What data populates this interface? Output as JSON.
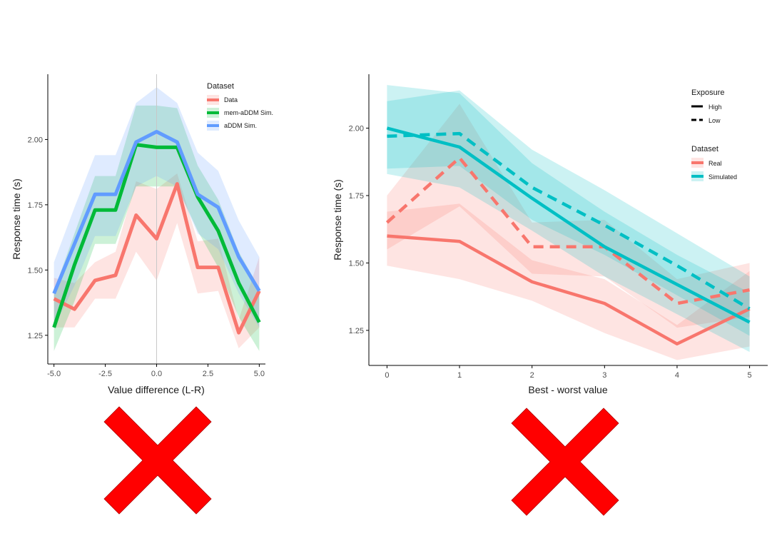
{
  "chart_data": [
    {
      "type": "line",
      "xlabel": "Value difference (L-R)",
      "ylabel": "Response time (s)",
      "xlim": [
        -5.3,
        5.3
      ],
      "ylim": [
        1.14,
        2.25
      ],
      "x_ticks": [
        -5,
        -2.5,
        0,
        2.5,
        5
      ],
      "x_tick_labels": [
        "-5.0",
        "-2.5",
        "0.0",
        "2.5",
        "5.0"
      ],
      "y_ticks": [
        1.25,
        1.5,
        1.75,
        2.0
      ],
      "y_tick_labels": [
        "1.25",
        "1.50",
        "1.75",
        "2.00"
      ],
      "vline_x": 0,
      "grid": false,
      "legend": {
        "title": "Dataset",
        "position": "top-right"
      },
      "x": [
        -5,
        -4,
        -3,
        -2,
        -1,
        0,
        1,
        2,
        3,
        4,
        5
      ],
      "series": [
        {
          "name": "Data",
          "color": "#F8766D",
          "values": [
            1.39,
            1.35,
            1.46,
            1.48,
            1.71,
            1.62,
            1.83,
            1.51,
            1.51,
            1.26,
            1.42
          ],
          "lower": [
            1.28,
            1.28,
            1.39,
            1.39,
            1.57,
            1.46,
            1.68,
            1.41,
            1.42,
            1.2,
            1.28
          ],
          "upper": [
            1.47,
            1.45,
            1.53,
            1.57,
            1.84,
            1.81,
            1.87,
            1.61,
            1.62,
            1.31,
            1.55
          ]
        },
        {
          "name": "mem-aDDM Sim.",
          "color": "#00BA38",
          "values": [
            1.28,
            1.52,
            1.73,
            1.73,
            1.98,
            1.97,
            1.97,
            1.78,
            1.65,
            1.45,
            1.3
          ],
          "lower": [
            1.19,
            1.38,
            1.6,
            1.6,
            1.82,
            1.82,
            1.82,
            1.65,
            1.51,
            1.32,
            1.19
          ],
          "upper": [
            1.42,
            1.64,
            1.86,
            1.86,
            2.13,
            2.13,
            2.12,
            1.9,
            1.77,
            1.57,
            1.43
          ]
        },
        {
          "name": "aDDM Sim.",
          "color": "#619CFF",
          "values": [
            1.41,
            1.6,
            1.79,
            1.79,
            1.99,
            2.03,
            1.99,
            1.79,
            1.74,
            1.55,
            1.42
          ],
          "lower": [
            1.28,
            1.44,
            1.63,
            1.63,
            1.82,
            1.86,
            1.82,
            1.64,
            1.58,
            1.41,
            1.28
          ],
          "upper": [
            1.53,
            1.74,
            1.94,
            1.94,
            2.14,
            2.2,
            2.14,
            1.95,
            1.88,
            1.69,
            1.55
          ]
        }
      ]
    },
    {
      "type": "line",
      "xlabel": "Best - worst value",
      "ylabel": "Response time (s)",
      "xlim": [
        -0.25,
        5.25
      ],
      "ylim": [
        1.12,
        2.2
      ],
      "x_ticks": [
        0,
        1,
        2,
        3,
        4,
        5
      ],
      "x_tick_labels": [
        "0",
        "1",
        "2",
        "3",
        "4",
        "5"
      ],
      "y_ticks": [
        1.25,
        1.5,
        1.75,
        2.0
      ],
      "y_tick_labels": [
        "1.25",
        "1.50",
        "1.75",
        "2.00"
      ],
      "grid": false,
      "legend": {
        "position": "top-right",
        "exposure_title": "Exposure",
        "exposure_items": [
          {
            "label": "High",
            "linetype": "solid"
          },
          {
            "label": "Low",
            "linetype": "dashed"
          }
        ],
        "dataset_title": "Dataset",
        "dataset_items": [
          {
            "label": "Real",
            "color": "#F8766D"
          },
          {
            "label": "Simulated",
            "color": "#00BFC4"
          }
        ]
      },
      "x": [
        0,
        1,
        2,
        3,
        4,
        5
      ],
      "series": [
        {
          "dataset": "Real",
          "exposure": "High",
          "color": "#F8766D",
          "values": [
            1.6,
            1.58,
            1.43,
            1.35,
            1.2,
            1.33
          ],
          "lower": [
            1.49,
            1.44,
            1.36,
            1.24,
            1.14,
            1.19
          ],
          "upper": [
            1.69,
            1.72,
            1.51,
            1.44,
            1.27,
            1.47
          ]
        },
        {
          "dataset": "Real",
          "exposure": "Low",
          "color": "#F8766D",
          "values": [
            1.65,
            1.89,
            1.56,
            1.56,
            1.35,
            1.4
          ],
          "lower": [
            1.55,
            1.71,
            1.46,
            1.45,
            1.26,
            1.3
          ],
          "upper": [
            1.75,
            2.09,
            1.65,
            1.66,
            1.44,
            1.5
          ]
        },
        {
          "dataset": "Simulated",
          "exposure": "High",
          "color": "#00BFC4",
          "values": [
            2.0,
            1.93,
            1.74,
            1.56,
            1.42,
            1.28
          ],
          "lower": [
            1.83,
            1.78,
            1.62,
            1.45,
            1.31,
            1.17
          ],
          "upper": [
            2.16,
            2.13,
            1.87,
            1.69,
            1.53,
            1.39
          ]
        },
        {
          "dataset": "Simulated",
          "exposure": "Low",
          "color": "#00BFC4",
          "values": [
            1.97,
            1.98,
            1.78,
            1.64,
            1.49,
            1.33
          ],
          "lower": [
            1.85,
            1.86,
            1.66,
            1.53,
            1.38,
            1.23
          ],
          "upper": [
            2.1,
            2.14,
            1.92,
            1.77,
            1.61,
            1.45
          ]
        }
      ]
    }
  ],
  "cross_marks": [
    {
      "name": "left-plot",
      "color": "#FF0000",
      "meaning": "incorrect"
    },
    {
      "name": "right-plot",
      "color": "#FF0000",
      "meaning": "incorrect"
    }
  ]
}
